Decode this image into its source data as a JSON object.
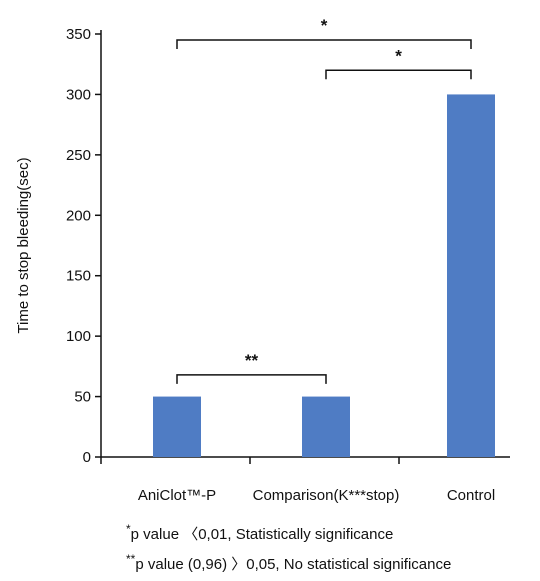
{
  "chart_data": {
    "type": "bar",
    "categories": [
      "AniClot™-P",
      "Comparison(K***stop)",
      "Control"
    ],
    "values": [
      50,
      50,
      300
    ],
    "ylabel": "Time to stop bleeding(sec)",
    "ylim": [
      0,
      350
    ],
    "yticks": [
      0,
      50,
      100,
      150,
      200,
      250,
      300,
      350
    ],
    "bar_color": "#4f7cc4",
    "grid": false,
    "legend": "none",
    "significance": [
      {
        "from": 0,
        "to": 2,
        "label": "*",
        "y": 345
      },
      {
        "from": 1,
        "to": 2,
        "label": "*",
        "y": 320
      },
      {
        "from": 0,
        "to": 1,
        "label": "**",
        "y": 68
      }
    ]
  },
  "footnotes": [
    {
      "mark": "*",
      "text": "p value 〈0,01, Statistically significance"
    },
    {
      "mark": "**",
      "text": "p value (0,96) 〉0,05, No statistical significance"
    }
  ]
}
